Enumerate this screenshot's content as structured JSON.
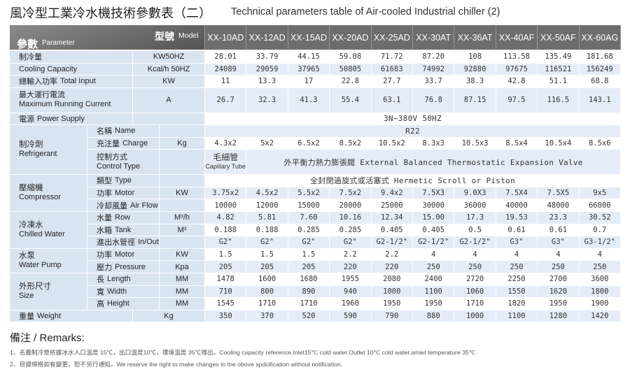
{
  "header": {
    "title_zh": "風冷型工業冷水機技術參數表（二）",
    "title_en": "Technical parameters table of Air-cooled Industrial chiller (2)"
  },
  "table": {
    "corner": {
      "zh": "參數",
      "en": "Parameter",
      "model_zh": "型號",
      "model_en": "Model"
    },
    "models": [
      "XX-10AD",
      "XX-12AD",
      "XX-15AD",
      "XX-20AD",
      "XX-25AD",
      "XX-30AT",
      "XX-36AT",
      "XX-40AF",
      "XX-50AF",
      "XX-60AG"
    ],
    "sections": [
      {
        "rows": [
          {
            "zh": "制冷量",
            "unit": "KW50HZ",
            "values": [
              "28.01",
              "33.79",
              "44.15",
              "59.08",
              "71.72",
              "87.20",
              "108",
              "113.58",
              "135.49",
              "181.68"
            ]
          },
          {
            "en": "Cooling Capacity",
            "unit": "Kcal/h 50HZ",
            "values": [
              "24089",
              "29059",
              "37965",
              "50805",
              "61683",
              "74992",
              "92880",
              "97675",
              "116521",
              "156249"
            ]
          },
          {
            "zh": "總輸入功率",
            "en": "Total Input",
            "unit": "KW",
            "values": [
              "11",
              "13.3",
              "17",
              "22.8",
              "27.7",
              "33.7",
              "38.3",
              "42.8",
              "51.1",
              "68.8"
            ]
          },
          {
            "zh": "最大運行電流",
            "en": "Maximum Running Current",
            "unit": "A",
            "values": [
              "26.7",
              "32.3",
              "41.3",
              "55.4",
              "63.1",
              "76.8",
              "87.15",
              "97.5",
              "116.5",
              "143.1"
            ]
          },
          {
            "zh": "電源",
            "en": "Power Supply",
            "values": [
              "3N~380V 50HZ"
            ]
          }
        ]
      },
      {
        "zh": "制冷劑",
        "en": "Refrigerant",
        "rows": [
          {
            "zh": "名稱",
            "en": "Name",
            "values": [
              "R22"
            ]
          },
          {
            "zh": "充注量",
            "en": "Charge",
            "unit": "Kg",
            "values": [
              "4.3x2",
              "5x2",
              "6.5x2",
              "8.5x2",
              "10.5x2",
              "8.3x3",
              "10.5x3",
              "8.5x4",
              "10.5x4",
              "8.5x6"
            ]
          },
          {
            "zh": "控制方式",
            "en": "Control Type",
            "values": [
              {
                "zh": "毛細管",
                "en": "Capillary Tube"
              },
              "外平衡力熱力膨張閥 External Balanced Thermostatic Expansion Valve"
            ]
          }
        ]
      },
      {
        "zh": "壓縮機",
        "en": "Compressor",
        "rows": [
          {
            "zh": "類型",
            "en": "Type",
            "values": [
              "全封閉過旋式或活塞式 Hermetic Scroll or Piston"
            ]
          },
          {
            "zh": "功率",
            "en": "Motor",
            "unit": "KW",
            "values": [
              "3.75x2",
              "4.5x2",
              "5.5x2",
              "7.5x2",
              "9.4x2",
              "7.5X3",
              "9.0X3",
              "7.5X4",
              "7.5X5",
              "9x5"
            ]
          },
          {
            "zh": "冷却風量",
            "en": "Air Flow",
            "values": [
              "10000",
              "12000",
              "15000",
              "20000",
              "25000",
              "30000",
              "36000",
              "40000",
              "48000",
              "66000"
            ]
          }
        ]
      },
      {
        "zh": "冷凍水",
        "en": "Chilled Water",
        "rows": [
          {
            "zh": "水量",
            "en": "Row",
            "unit": "M³/h",
            "values": [
              "4.82",
              "5.81",
              "7.60",
              "10.16",
              "12.34",
              "15.00",
              "17.3",
              "19.53",
              "23.3",
              "30.52"
            ]
          },
          {
            "zh": "水箱",
            "en": "Tank",
            "unit": "M³",
            "values": [
              "0.188",
              "0.188",
              "0.285",
              "0.285",
              "0.405",
              "0.405",
              "0.5",
              "0.61",
              "0.61",
              "0.7"
            ]
          },
          {
            "zh": "進出水管徑",
            "en": "In/Out Pipe Size",
            "values": [
              "G2\"",
              "G2\"",
              "G2\"",
              "G2\"",
              "G2-1/2\"",
              "G2-1/2\"",
              "G2-1/2\"",
              "G3\"",
              "G3\"",
              "G3-1/2\""
            ]
          }
        ]
      },
      {
        "zh": "水泵",
        "en": "Water Pump",
        "rows": [
          {
            "zh": "功率",
            "en": "Motor",
            "unit": "KW",
            "values": [
              "1.5",
              "1.5",
              "1.5",
              "2.2",
              "2.2",
              "4",
              "4",
              "4",
              "4",
              "4"
            ]
          },
          {
            "zh": "壓力",
            "en": "Pressure",
            "unit": "Kpa",
            "values": [
              "205",
              "205",
              "205",
              "220",
              "220",
              "250",
              "250",
              "250",
              "250",
              "250"
            ]
          }
        ]
      },
      {
        "zh": "外形尺寸",
        "en": "Size",
        "rows": [
          {
            "zh": "長",
            "en": "Length",
            "unit": "MM",
            "values": [
              "1478",
              "1600",
              "1680",
              "1955",
              "2080",
              "2400",
              "2720",
              "2250",
              "2700",
              "3600"
            ]
          },
          {
            "zh": "寬",
            "en": "Width",
            "unit": "MM",
            "values": [
              "710",
              "800",
              "890",
              "940",
              "1000",
              "1100",
              "1060",
              "1550",
              "1620",
              "1800"
            ]
          },
          {
            "zh": "高",
            "en": "Height",
            "unit": "MM",
            "values": [
              "1545",
              "1710",
              "1710",
              "1960",
              "1950",
              "1950",
              "1710",
              "1820",
              "1950",
              "1900"
            ]
          }
        ]
      },
      {
        "rows": [
          {
            "zh": "重量",
            "en": "Weight",
            "unit": "Kg",
            "values": [
              "350",
              "370",
              "520",
              "590",
              "790",
              "880",
              "1000",
              "1100",
              "1280",
              "1420"
            ]
          }
        ]
      }
    ]
  },
  "remarks": {
    "title": "備注 / Remarks:",
    "items": [
      "1、名義制冷是依據冰水入口溫度 15℃，出口溫度10℃，環境溫度 35℃得出。Cooling capacity reference.Inlet15℃ cold water.Outlet 10℃ cold water.amiet temperature 35℃",
      "2、目録規格如有變更，恕不另行通知。We reserve ihe right to make changes to the obove spdcification without notification."
    ]
  }
}
